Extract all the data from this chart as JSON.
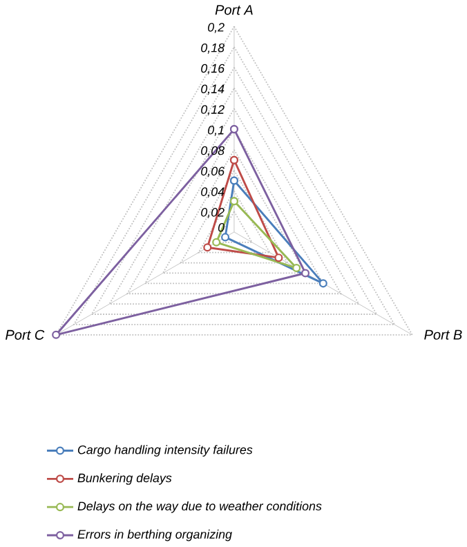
{
  "chart_data": {
    "type": "radar",
    "categories": [
      "Port A",
      "Port B",
      "Port C"
    ],
    "series": [
      {
        "name": "Cargo handling intensity failures",
        "color": "#4a7ebb",
        "values": [
          0.05,
          0.1,
          0.01
        ]
      },
      {
        "name": "Bunkering delays",
        "color": "#be4b48",
        "values": [
          0.07,
          0.05,
          0.03
        ]
      },
      {
        "name": "Delays on the way due to weather conditions",
        "color": "#98b954",
        "values": [
          0.03,
          0.07,
          0.02
        ]
      },
      {
        "name": "Errors in berthing organizing",
        "color": "#7d60a0",
        "values": [
          0.1,
          0.08,
          0.2
        ]
      }
    ],
    "ylim": [
      0,
      0.2
    ],
    "yticks": [
      {
        "value": 0,
        "label": "0"
      },
      {
        "value": 0.02,
        "label": "0,02"
      },
      {
        "value": 0.04,
        "label": "0,04"
      },
      {
        "value": 0.06,
        "label": "0,06"
      },
      {
        "value": 0.08,
        "label": "0,08"
      },
      {
        "value": 0.1,
        "label": "0,1"
      },
      {
        "value": 0.12,
        "label": "0,12"
      },
      {
        "value": 0.14,
        "label": "0,14"
      },
      {
        "value": 0.16,
        "label": "0,16"
      },
      {
        "value": 0.18,
        "label": "0,18"
      },
      {
        "value": 0.2,
        "label": "0,2"
      }
    ],
    "grid": true,
    "legend": "bottom",
    "marker": "circle",
    "line_style": "solid"
  }
}
